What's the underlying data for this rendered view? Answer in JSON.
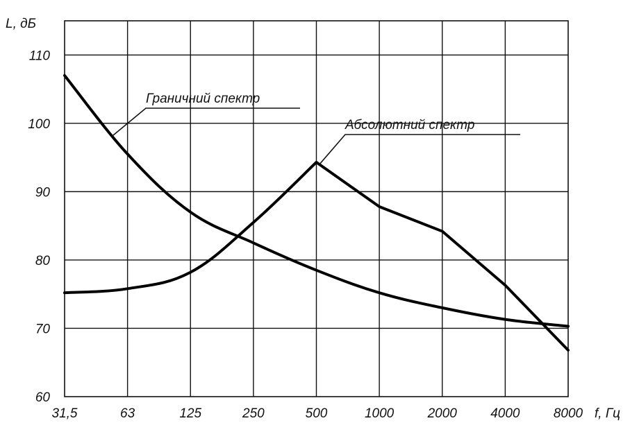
{
  "chart_data": {
    "type": "line",
    "categories": [
      "31,5",
      "63",
      "125",
      "250",
      "500",
      "1000",
      "2000",
      "4000",
      "8000"
    ],
    "ylim": [
      60,
      115
    ],
    "yticks": [
      60,
      70,
      80,
      90,
      100,
      110
    ],
    "ylabel": "L, дБ",
    "xlabel": "f, Гц",
    "grid": true,
    "series": [
      {
        "name": "Граничний спектр",
        "values": [
          107,
          95.5,
          87,
          82.5,
          78.5,
          75.2,
          73,
          71.3,
          70.3
        ]
      },
      {
        "name": "Абсолютний спектр",
        "values": [
          75.2,
          75.8,
          78.2,
          85.5,
          94.3,
          87.8,
          84.2,
          76.3,
          66.8
        ]
      }
    ]
  }
}
